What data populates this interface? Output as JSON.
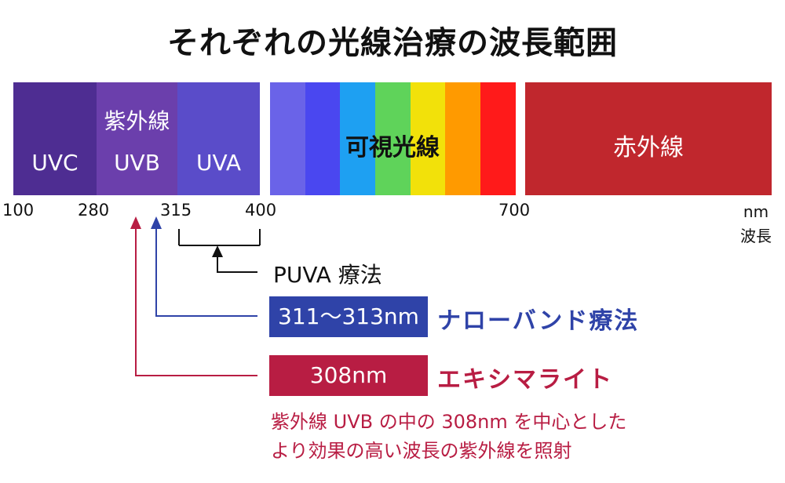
{
  "title": "それぞれの光線治療の波長範囲",
  "spectrum": {
    "uv_group_label": "紫外線",
    "uvc_label": "UVC",
    "uvb_label": "UVB",
    "uva_label": "UVA",
    "visible_label": "可視光線",
    "infrared_label": "赤外線",
    "colors": {
      "uvc": "#4e2d92",
      "uvb": "#6b3fac",
      "uva": "#5a4cc9",
      "visible": [
        "#6a63e8",
        "#4a47f0",
        "#1ea0f2",
        "#5fd35a",
        "#f2e10a",
        "#ff9a00",
        "#ff1a1a"
      ],
      "infrared": "#c0272d"
    }
  },
  "axis": {
    "ticks": [
      "100",
      "280",
      "315",
      "400",
      "700"
    ],
    "unit": "nm",
    "unit_label": "波長"
  },
  "therapies": {
    "puva_label": "PUVA 療法",
    "narrowband_range": "311～313nm",
    "narrowband_label": "ナローバンド療法",
    "excimer_range": "308nm",
    "excimer_label": "エキシマライト",
    "colors": {
      "black": "#111111",
      "blue": "#2f43a8",
      "red": "#b81d43"
    }
  },
  "note": {
    "line1": "紫外線 UVB の中の 308nm を中心とした",
    "line2": "より効果の高い波長の紫外線を照射"
  }
}
